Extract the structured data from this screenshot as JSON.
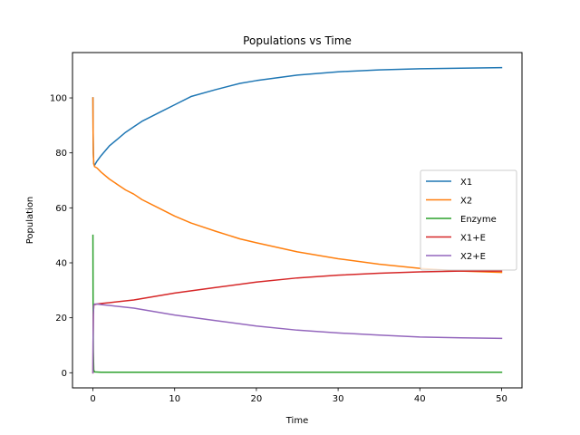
{
  "chart_data": {
    "type": "line",
    "title": "Populations vs Time",
    "xlabel": "Time",
    "ylabel": "Population",
    "xlim": [
      -2.5,
      52.5
    ],
    "ylim": [
      -5.5,
      116.5
    ],
    "xticks": [
      0,
      10,
      20,
      30,
      40,
      50
    ],
    "yticks": [
      0,
      20,
      40,
      60,
      80,
      100
    ],
    "grid": false,
    "legend_location": "center-right",
    "series": [
      {
        "name": "X1",
        "color": "#1f77b4",
        "x": [
          0,
          0.02,
          0.05,
          0.1,
          0.2,
          0.5,
          1,
          2,
          3,
          4,
          5,
          6,
          8,
          10,
          12,
          15,
          18,
          20,
          25,
          30,
          35,
          40,
          45,
          50
        ],
        "y": [
          100,
          88,
          80,
          76,
          75.5,
          77,
          79,
          82.5,
          85,
          87.5,
          89.5,
          91.5,
          94.5,
          97.5,
          100.5,
          103,
          105.3,
          106.3,
          108.3,
          109.5,
          110.2,
          110.6,
          110.8,
          111
        ]
      },
      {
        "name": "X2",
        "color": "#ff7f0e",
        "x": [
          0,
          0.02,
          0.05,
          0.1,
          0.2,
          0.5,
          1,
          2,
          3,
          4,
          5,
          6,
          8,
          10,
          12,
          15,
          18,
          20,
          25,
          30,
          35,
          40,
          45,
          50
        ],
        "y": [
          100,
          88,
          80,
          76,
          75,
          74.5,
          73,
          70.5,
          68.5,
          66.5,
          65,
          63,
          60,
          57,
          54.5,
          51.5,
          48.7,
          47.3,
          44,
          41.5,
          39.5,
          38,
          37,
          36.5
        ]
      },
      {
        "name": "Enzyme",
        "color": "#2ca02c",
        "x": [
          0,
          0.02,
          0.05,
          0.1,
          0.2,
          1,
          50
        ],
        "y": [
          50,
          25,
          8,
          1,
          0.3,
          0.2,
          0.2
        ]
      },
      {
        "name": "X1+E",
        "color": "#d62728",
        "x": [
          0,
          0.02,
          0.05,
          0.1,
          0.2,
          0.5,
          1,
          2,
          5,
          10,
          15,
          20,
          25,
          30,
          35,
          40,
          45,
          50
        ],
        "y": [
          0,
          12,
          21,
          24.5,
          24.8,
          25,
          25.2,
          25.5,
          26.5,
          29,
          31,
          33,
          34.5,
          35.5,
          36.2,
          36.7,
          37,
          37
        ]
      },
      {
        "name": "X2+E",
        "color": "#9467bd",
        "x": [
          0,
          0.02,
          0.05,
          0.1,
          0.2,
          0.5,
          1,
          2,
          5,
          10,
          15,
          20,
          25,
          30,
          35,
          40,
          45,
          50
        ],
        "y": [
          0,
          12,
          21,
          24.5,
          25,
          25,
          24.8,
          24.5,
          23.5,
          21,
          19,
          17,
          15.5,
          14.5,
          13.7,
          13,
          12.7,
          12.5
        ]
      }
    ]
  }
}
